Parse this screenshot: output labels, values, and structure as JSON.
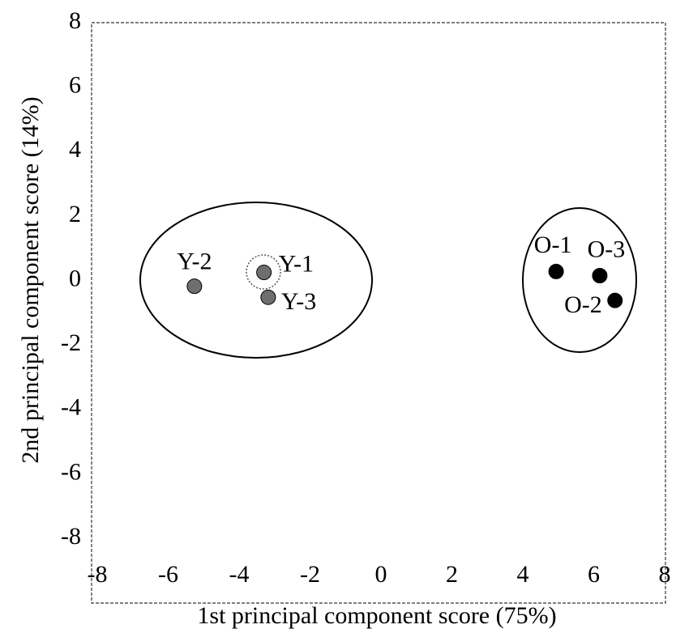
{
  "chart_data": {
    "type": "scatter",
    "x_label": "1st  principal component score (75%)",
    "y_label": "2nd principal component score (14%)",
    "xlim": [
      -8,
      8
    ],
    "ylim": [
      -8,
      8
    ],
    "xticks": [
      -8,
      -6,
      -4,
      -2,
      0,
      2,
      4,
      6,
      8
    ],
    "yticks": [
      -8,
      -6,
      -4,
      -2,
      0,
      2,
      4,
      6,
      8
    ],
    "series": [
      {
        "color": "#6e6e6e",
        "x": [
          -3.3,
          -5.26,
          -3.18
        ],
        "values": [
          0.25,
          -0.18,
          -0.52
        ],
        "labels": [
          "Y-1",
          "Y-2",
          "Y-3"
        ]
      },
      {
        "color": "#000000",
        "x": [
          4.94,
          6.6,
          6.17
        ],
        "values": [
          0.28,
          -0.62,
          0.15
        ],
        "labels": [
          "O-1",
          "O-2",
          "O-3"
        ]
      }
    ]
  }
}
